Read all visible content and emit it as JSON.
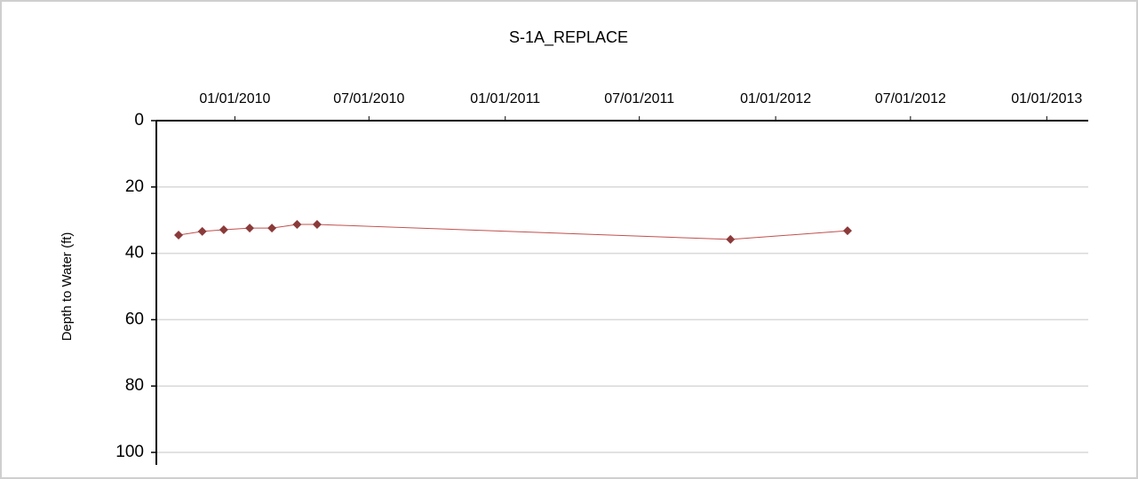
{
  "chart_data": {
    "type": "line",
    "title": "S-1A_REPLACE",
    "y_label": "Depth to Water (ft)",
    "x": [
      "2009-10-17",
      "2009-11-18",
      "2009-12-17",
      "2010-01-21",
      "2010-02-20",
      "2010-03-26",
      "2010-04-22",
      "2011-11-01",
      "2012-04-07"
    ],
    "series": [
      {
        "name": "S-1A_REPLACE",
        "color": "#c0504d",
        "marker_color": "#8b3a3a",
        "values": [
          34.5,
          33.4,
          32.9,
          32.4,
          32.4,
          31.3,
          31.3,
          35.8,
          33.2
        ]
      }
    ],
    "xlim": [
      "2009-09-17",
      "2013-02-26"
    ],
    "xticks": [
      {
        "value": "2010-01-01",
        "label": "01/01/2010"
      },
      {
        "value": "2010-07-01",
        "label": "07/01/2010"
      },
      {
        "value": "2011-01-01",
        "label": "01/01/2011"
      },
      {
        "value": "2011-07-01",
        "label": "07/01/2011"
      },
      {
        "value": "2012-01-01",
        "label": "01/01/2012"
      },
      {
        "value": "2012-07-01",
        "label": "07/01/2012"
      },
      {
        "value": "2013-01-01",
        "label": "01/01/2013"
      }
    ],
    "ylim": [
      0,
      100
    ],
    "yticks": [
      0,
      20,
      40,
      60,
      80,
      100
    ],
    "y_inverted": true,
    "grid": true
  }
}
